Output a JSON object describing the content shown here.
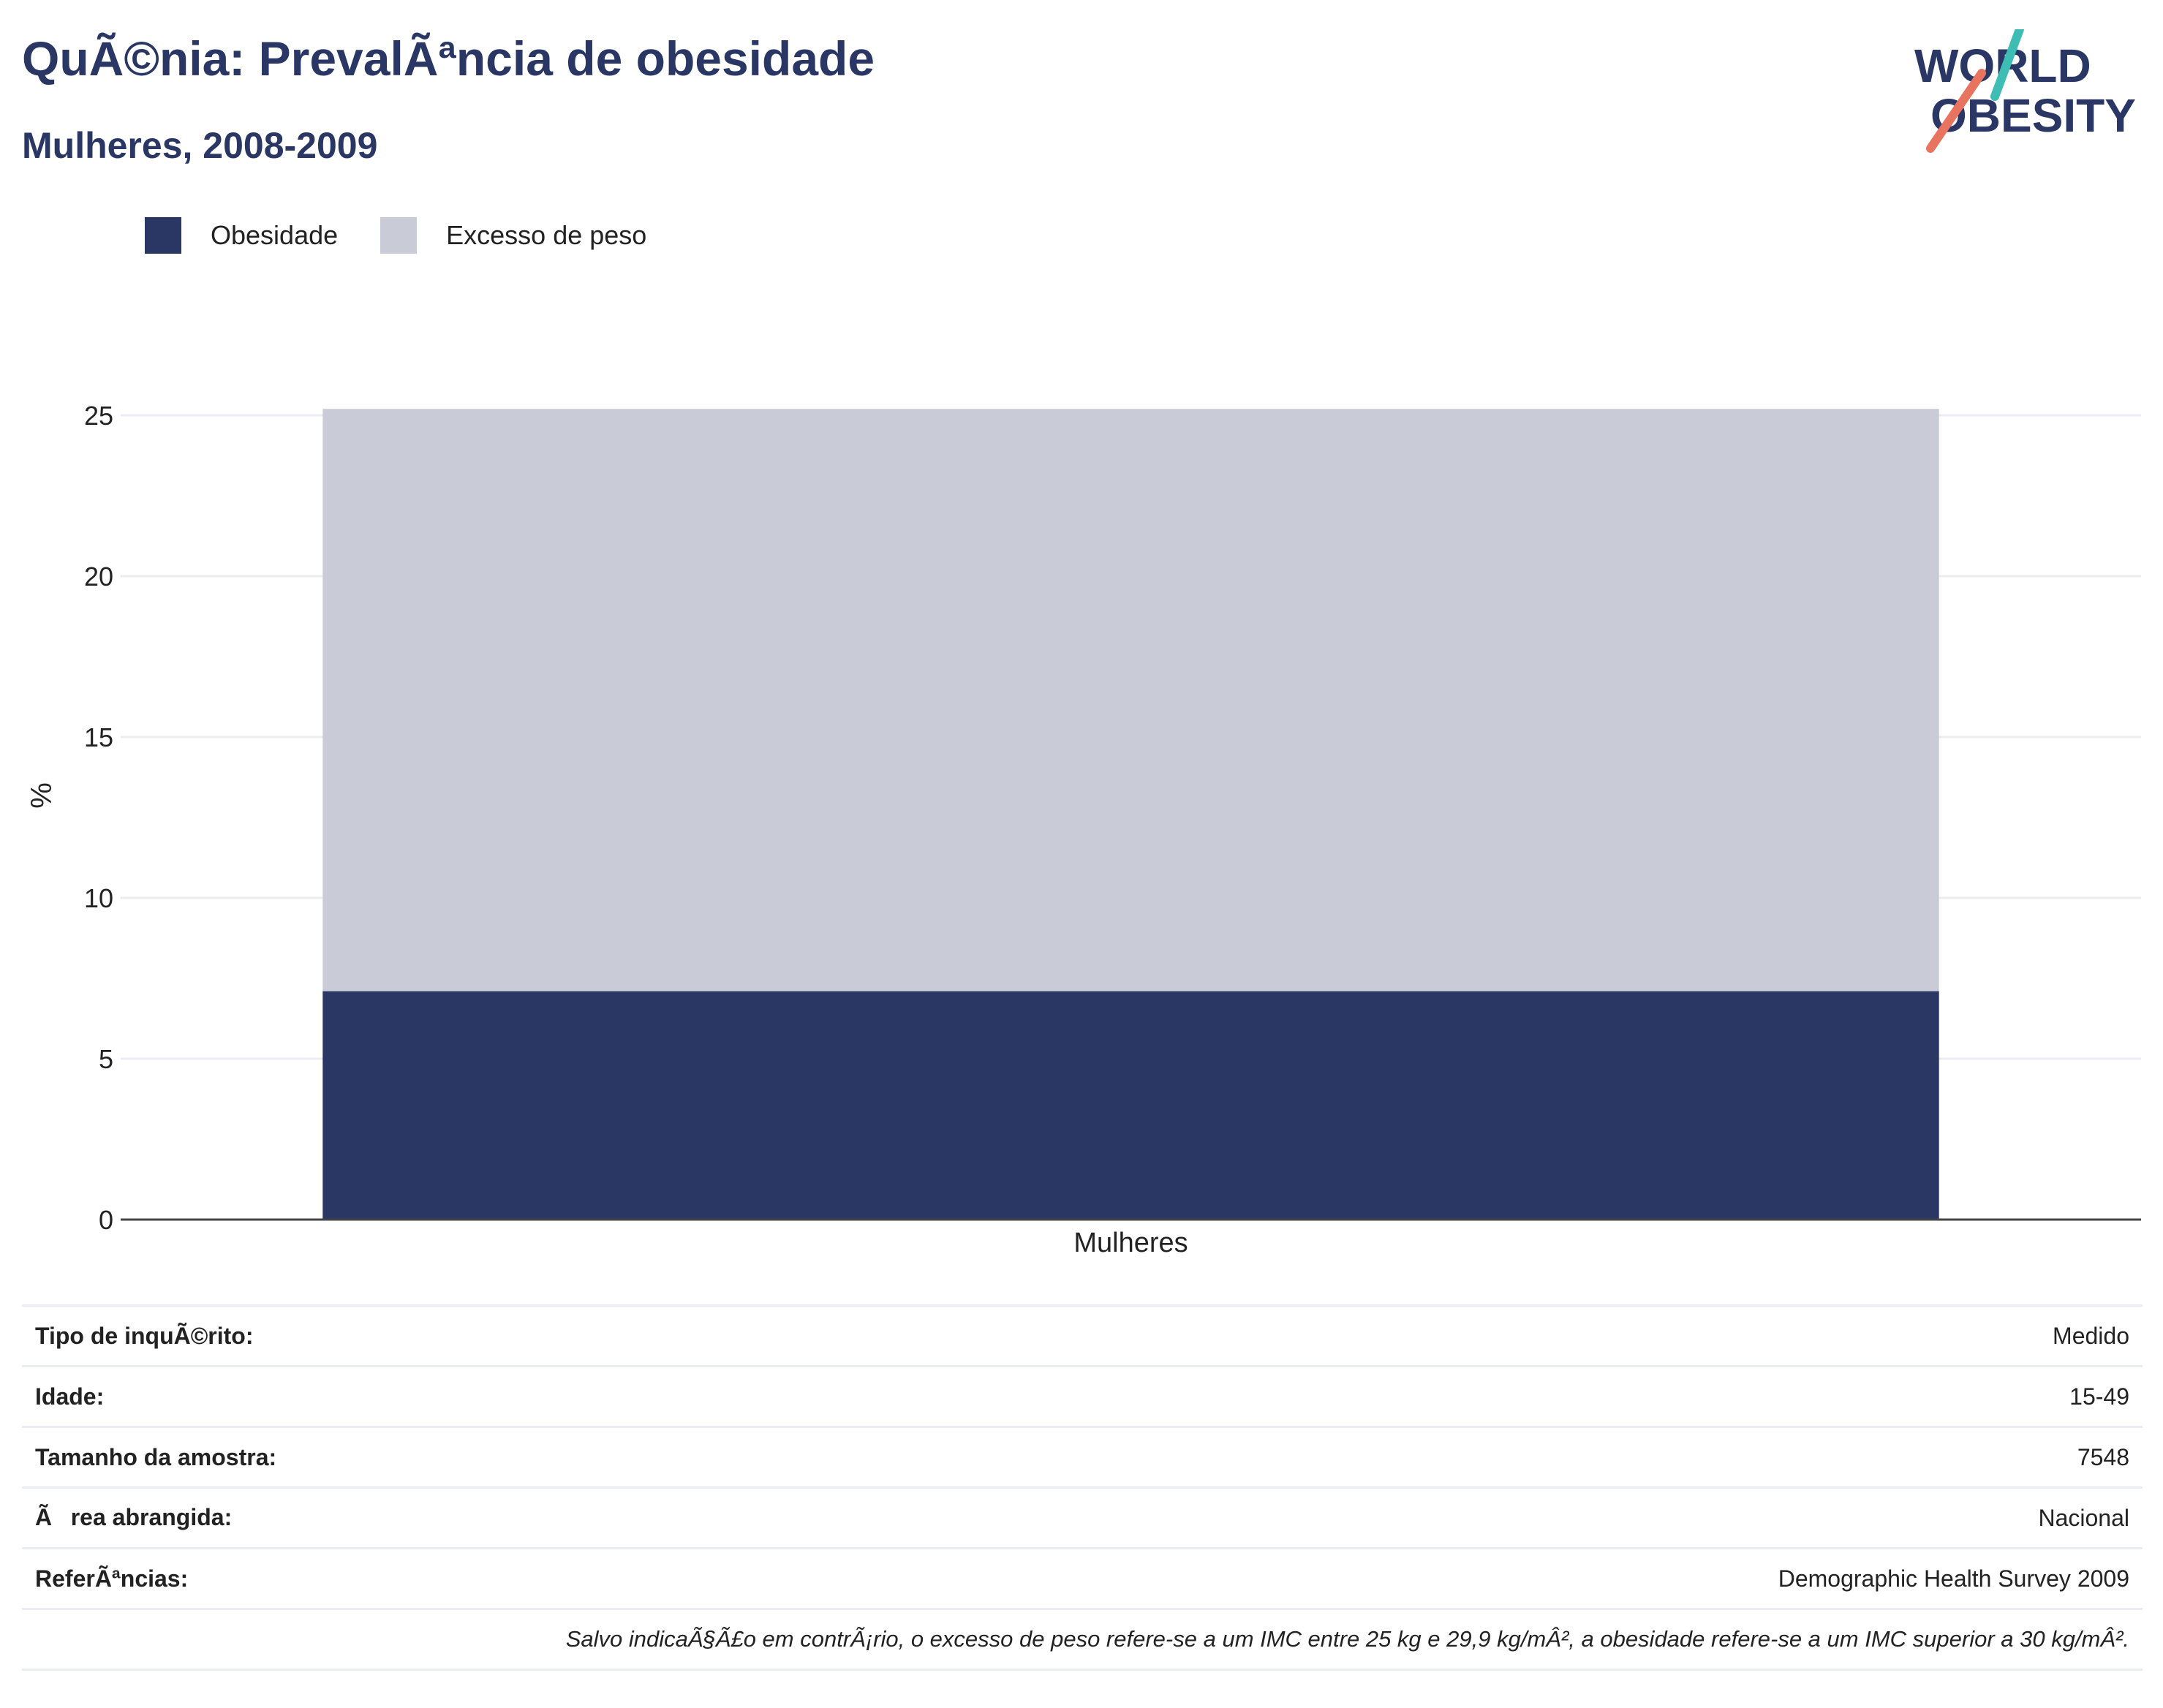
{
  "header": {
    "title": "QuÃ©nia: PrevalÃªncia de obesidade",
    "subtitle": "Mulheres, 2008-2009"
  },
  "logo": {
    "line1": "WORLD",
    "line2": "OBESITY"
  },
  "colors": {
    "obesity": "#2a3764",
    "overweight": "#c9ccd7",
    "title": "#2a3764",
    "accent_teal": "#3dbdb4",
    "accent_coral": "#e8735e"
  },
  "chart_data": {
    "type": "bar",
    "stacked": true,
    "categories": [
      "Mulheres"
    ],
    "series": [
      {
        "name": "Obesidade",
        "values": [
          7.1
        ]
      },
      {
        "name": "Excesso de peso",
        "values": [
          18.1
        ]
      }
    ],
    "ylabel": "%",
    "xlabel": "",
    "ylim": [
      0,
      25
    ],
    "yticks": [
      0,
      5,
      10,
      15,
      20,
      25
    ],
    "grid": true,
    "legend": "top-left"
  },
  "info": {
    "rows": [
      {
        "label": "Tipo de inquÃ©rito:",
        "value": "Medido"
      },
      {
        "label": "Idade:",
        "value": "15-49"
      },
      {
        "label": "Tamanho da amostra:",
        "value": "7548"
      },
      {
        "label": "Ãrea abrangida:",
        "value": "Nacional"
      },
      {
        "label": "ReferÃªncias:",
        "value": "Demographic Health Survey 2009"
      }
    ],
    "note": "Salvo indicaÃ§Ã£o em contrÃ¡rio, o excesso de peso refere-se a um IMC entre 25 kg e 29,9 kg/mÂ², a obesidade refere-se a um IMC superior a 30 kg/mÂ²."
  }
}
